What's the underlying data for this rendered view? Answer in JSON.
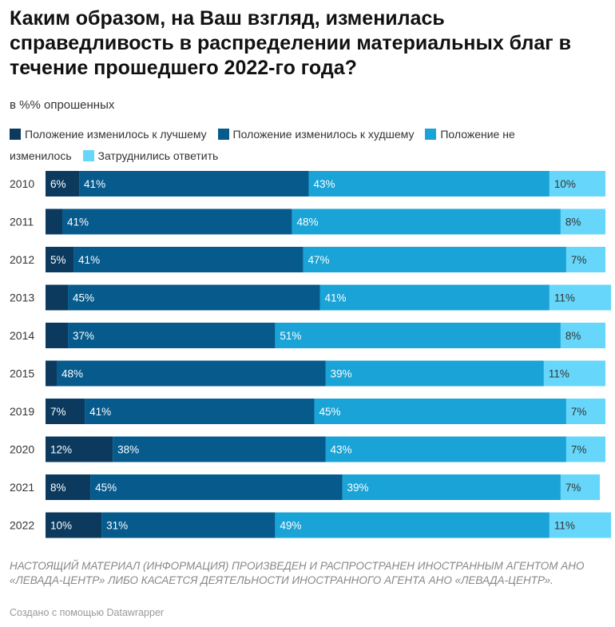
{
  "title": "Каким образом, на Ваш взгляд, изменилась справедливость в распределении материальных благ в течение прошедшего 2022-го года?",
  "subtitle": "в %% опрошенных",
  "footer": {
    "notice": "НАСТОЯЩИЙ МАТЕРИАЛ (ИНФОРМАЦИЯ) ПРОИЗВЕДЕН И РАСПРОСТРАНЕН ИНОСТРАННЫМ АГЕНТОМ АНО «ЛЕВАДА-ЦЕНТР» ЛИБО КАСАЕТСЯ ДЕЯТЕЛЬНОСТИ ИНОСТРАННОГО АГЕНТА АНО «ЛЕВАДА-ЦЕНТР».",
    "credit": "Создано с помощью Datawrapper"
  },
  "chart_data": {
    "type": "bar",
    "orientation": "horizontal",
    "stacked": true,
    "xlim": [
      0,
      100
    ],
    "grid": false,
    "legend_position": "top",
    "categories": [
      "2010",
      "2011",
      "2012",
      "2013",
      "2014",
      "2015",
      "2019",
      "2020",
      "2021",
      "2022"
    ],
    "series": [
      {
        "name": "Положение изменилось к лучшему",
        "color": "#0b3a5e",
        "values": [
          6,
          3,
          5,
          4,
          4,
          2,
          7,
          12,
          8,
          10
        ],
        "labels": [
          "6%",
          "",
          "5%",
          "",
          "",
          "",
          "7%",
          "12%",
          "8%",
          "10%"
        ],
        "label_color": "#ffffff"
      },
      {
        "name": "Положение изменилось к худшему",
        "color": "#065a8c",
        "values": [
          41,
          41,
          41,
          45,
          37,
          48,
          41,
          38,
          45,
          31
        ],
        "labels": [
          "41%",
          "41%",
          "41%",
          "45%",
          "37%",
          "48%",
          "41%",
          "38%",
          "45%",
          "31%"
        ],
        "label_color": "#ffffff"
      },
      {
        "name": "Положение не изменилось",
        "color": "#1aa3d6",
        "values": [
          43,
          48,
          47,
          41,
          51,
          39,
          45,
          43,
          39,
          49
        ],
        "labels": [
          "43%",
          "48%",
          "47%",
          "41%",
          "51%",
          "39%",
          "45%",
          "43%",
          "39%",
          "49%"
        ],
        "label_color": "#ffffff"
      },
      {
        "name": "Затруднились ответить",
        "color": "#66d7fa",
        "values": [
          10,
          8,
          7,
          11,
          8,
          11,
          7,
          7,
          7,
          11
        ],
        "labels": [
          "10%",
          "8%",
          "7%",
          "11%",
          "8%",
          "11%",
          "7%",
          "7%",
          "7%",
          "11%"
        ],
        "label_color": "#333333"
      }
    ]
  }
}
